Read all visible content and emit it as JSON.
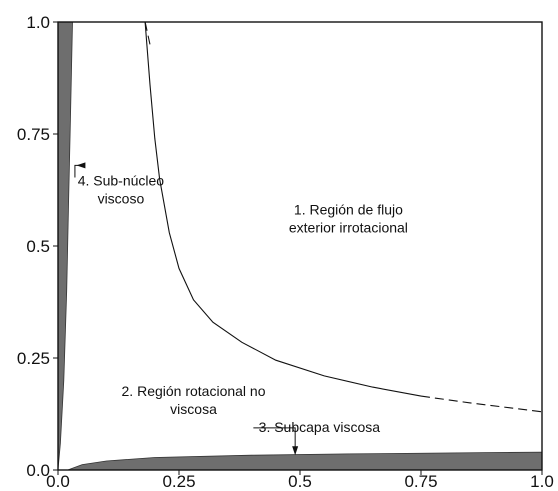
{
  "chart_data": {
    "type": "line",
    "x_ticks": [
      "0.0",
      "0.25",
      "0.5",
      "0.75",
      "1.0"
    ],
    "y_ticks": [
      "0.0",
      "0.25",
      "0.5",
      "0.75",
      "1.0"
    ],
    "xlim": [
      0,
      1
    ],
    "ylim": [
      0,
      1
    ],
    "grid": false,
    "series": [
      {
        "role": "boundary-flujo-exterior",
        "points": [
          [
            0.18,
            1.0
          ],
          [
            0.19,
            0.86
          ],
          [
            0.2,
            0.74
          ],
          [
            0.21,
            0.65
          ],
          [
            0.23,
            0.53
          ],
          [
            0.25,
            0.45
          ],
          [
            0.28,
            0.38
          ],
          [
            0.32,
            0.33
          ],
          [
            0.38,
            0.285
          ],
          [
            0.45,
            0.245
          ],
          [
            0.55,
            0.21
          ],
          [
            0.65,
            0.185
          ],
          [
            0.75,
            0.165
          ],
          [
            0.85,
            0.15
          ],
          [
            0.94,
            0.138
          ],
          [
            1.0,
            0.13
          ]
        ],
        "solid_until_x": 0.75
      },
      {
        "role": "sub-nucleo-viscoso",
        "points": [
          [
            0.0,
            0.0
          ],
          [
            0.005,
            0.06
          ],
          [
            0.012,
            0.2
          ],
          [
            0.018,
            0.4
          ],
          [
            0.022,
            0.6
          ],
          [
            0.026,
            0.8
          ],
          [
            0.03,
            1.0
          ]
        ]
      },
      {
        "role": "subcapa-viscosa",
        "points": [
          [
            0.02,
            0.0
          ],
          [
            0.05,
            0.012
          ],
          [
            0.1,
            0.02
          ],
          [
            0.2,
            0.028
          ],
          [
            0.4,
            0.033
          ],
          [
            0.6,
            0.036
          ],
          [
            0.8,
            0.038
          ],
          [
            1.0,
            0.04
          ]
        ]
      }
    ],
    "annotations": [
      {
        "lines": [
          "1. Región de flujo",
          "exterior irrotacional"
        ],
        "x": 0.6,
        "y": 0.57
      },
      {
        "lines": [
          "2. Región rotacional no",
          "viscosa"
        ],
        "x": 0.28,
        "y": 0.165
      },
      {
        "lines": [
          "3. Subcapa viscosa"
        ],
        "x": 0.54,
        "y": 0.085,
        "arrow_to": [
          0.49,
          0.033
        ]
      },
      {
        "lines": [
          "4. Sub-núcleo",
          "viscoso"
        ],
        "x": 0.13,
        "y": 0.635,
        "arrow_to": [
          0.038,
          0.68
        ]
      }
    ]
  }
}
